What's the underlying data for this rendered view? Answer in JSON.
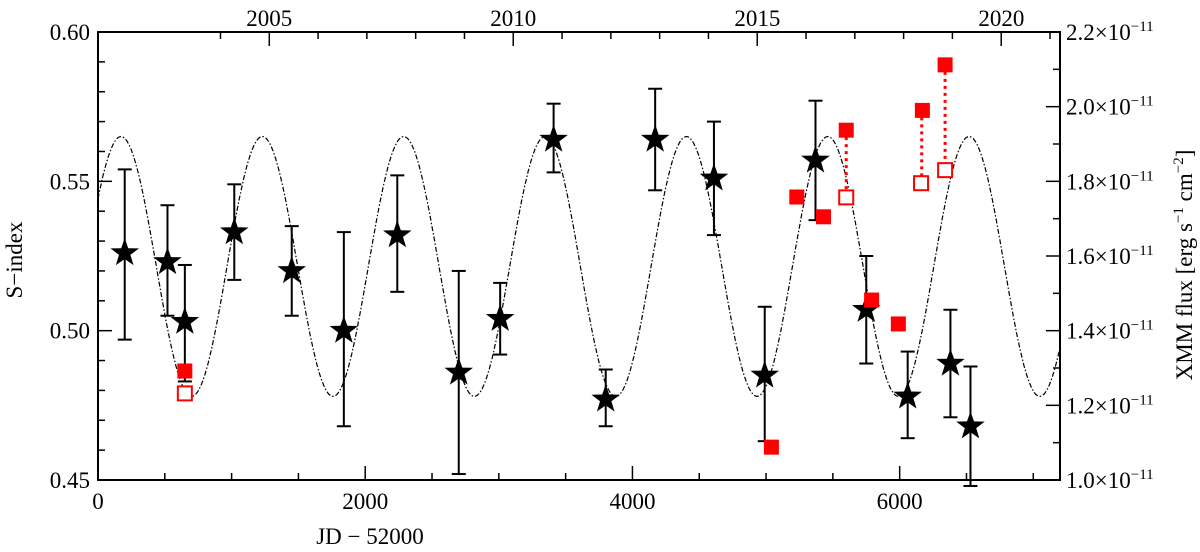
{
  "chart_data": {
    "type": "scatter",
    "xlabel": "JD − 52000",
    "ylabel": "S−index",
    "y2label": {
      "prefix": "XMM flux [erg s",
      "exp1": "−1",
      "mid": " cm",
      "exp2": "−2",
      "suffix": "]"
    },
    "xlim": [
      0,
      7200
    ],
    "ylim": [
      0.45,
      0.6
    ],
    "y2lim": [
      1e-11,
      2.2e-11
    ],
    "x_ticks": [
      0,
      2000,
      4000,
      6000
    ],
    "x_tick_labels": [
      "0",
      "2000",
      "4000",
      "6000"
    ],
    "y_ticks": [
      0.45,
      0.5,
      0.55,
      0.6
    ],
    "y_tick_labels": [
      "0.45",
      "0.50",
      "0.55",
      "0.60"
    ],
    "y2_ticks": [
      1e-11,
      1.2e-11,
      1.4e-11,
      1.6e-11,
      1.8e-11,
      2e-11,
      2.2e-11
    ],
    "y2_tick_labels": [
      {
        "mant": "1.0×10",
        "exp": "−11"
      },
      {
        "mant": "1.2×10",
        "exp": "−11"
      },
      {
        "mant": "1.4×10",
        "exp": "−11"
      },
      {
        "mant": "1.6×10",
        "exp": "−11"
      },
      {
        "mant": "1.8×10",
        "exp": "−11"
      },
      {
        "mant": "2.0×10",
        "exp": "−11"
      },
      {
        "mant": "2.2×10",
        "exp": "−11"
      }
    ],
    "top_axis": {
      "ticks_jd": [
        1282,
        3108,
        4935,
        6761
      ],
      "labels": [
        "2005",
        "2010",
        "2015",
        "2020"
      ]
    },
    "grid": false,
    "legend": "none",
    "s_index": [
      {
        "x": 200,
        "y": 0.526,
        "lo": 0.497,
        "hi": 0.554
      },
      {
        "x": 520,
        "y": 0.523,
        "lo": 0.505,
        "hi": 0.542
      },
      {
        "x": 650,
        "y": 0.503,
        "lo": 0.483,
        "hi": 0.522
      },
      {
        "x": 1020,
        "y": 0.533,
        "lo": 0.517,
        "hi": 0.549
      },
      {
        "x": 1450,
        "y": 0.52,
        "lo": 0.505,
        "hi": 0.535
      },
      {
        "x": 1840,
        "y": 0.5,
        "lo": 0.468,
        "hi": 0.533
      },
      {
        "x": 2240,
        "y": 0.532,
        "lo": 0.513,
        "hi": 0.552
      },
      {
        "x": 2700,
        "y": 0.486,
        "lo": 0.452,
        "hi": 0.52
      },
      {
        "x": 3010,
        "y": 0.504,
        "lo": 0.492,
        "hi": 0.516
      },
      {
        "x": 3410,
        "y": 0.564,
        "lo": 0.553,
        "hi": 0.576
      },
      {
        "x": 3800,
        "y": 0.477,
        "lo": 0.468,
        "hi": 0.487
      },
      {
        "x": 4170,
        "y": 0.564,
        "lo": 0.547,
        "hi": 0.581
      },
      {
        "x": 4610,
        "y": 0.551,
        "lo": 0.532,
        "hi": 0.57
      },
      {
        "x": 4990,
        "y": 0.485,
        "lo": 0.463,
        "hi": 0.508
      },
      {
        "x": 5370,
        "y": 0.557,
        "lo": 0.537,
        "hi": 0.577
      },
      {
        "x": 5750,
        "y": 0.507,
        "lo": 0.489,
        "hi": 0.525
      },
      {
        "x": 6060,
        "y": 0.478,
        "lo": 0.464,
        "hi": 0.493
      },
      {
        "x": 6380,
        "y": 0.489,
        "lo": 0.471,
        "hi": 0.507
      },
      {
        "x": 6530,
        "y": 0.468,
        "lo": 0.448,
        "hi": 0.488
      }
    ],
    "xmm_filled": [
      {
        "x": 650,
        "flux": 1.292e-11
      },
      {
        "x": 5040,
        "flux": 1.088e-11
      },
      {
        "x": 5230,
        "flux": 1.758e-11
      },
      {
        "x": 5430,
        "flux": 1.705e-11
      },
      {
        "x": 5600,
        "flux": 1.937e-11
      },
      {
        "x": 5790,
        "flux": 1.482e-11
      },
      {
        "x": 5990,
        "flux": 1.418e-11
      },
      {
        "x": 6170,
        "flux": 1.99e-11
      },
      {
        "x": 6340,
        "flux": 2.112e-11
      }
    ],
    "xmm_open": [
      {
        "x": 650,
        "flux": 1.232e-11
      },
      {
        "x": 5600,
        "flux": 1.757e-11
      },
      {
        "x": 6160,
        "flux": 1.795e-11
      },
      {
        "x": 6340,
        "flux": 1.83e-11
      }
    ],
    "xmm_links": [
      {
        "x": 5600,
        "from": 1.937e-11,
        "to": 1.757e-11
      },
      {
        "x": 6165,
        "from": 1.99e-11,
        "to": 1.795e-11
      },
      {
        "x": 6340,
        "from": 2.112e-11,
        "to": 1.83e-11
      }
    ],
    "cycle_model": {
      "kind": "sinusoid",
      "mean": 0.5215,
      "amplitude": 0.0435,
      "period_days": 1058,
      "peak_jd": 1230
    },
    "colors": {
      "axes": "#000000",
      "stars": "#000000",
      "xmm": "#ff0000",
      "model": "#000000"
    }
  }
}
